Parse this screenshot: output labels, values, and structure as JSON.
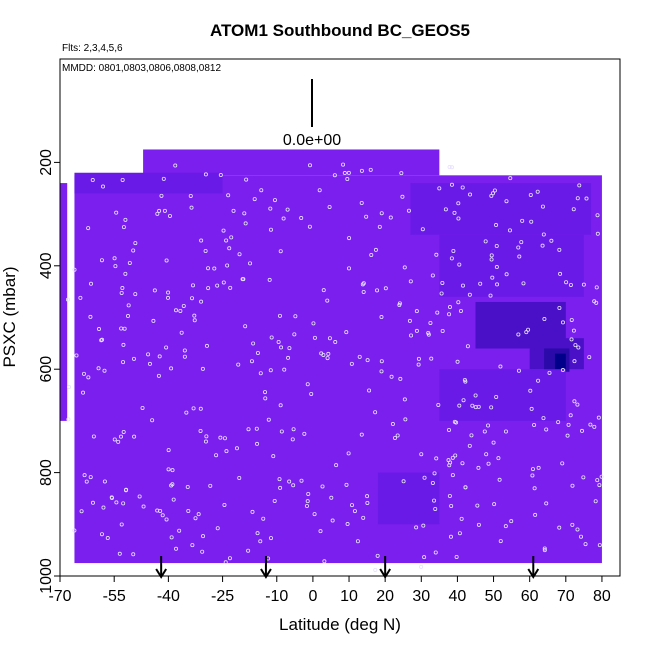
{
  "chart_data": {
    "type": "heatmap",
    "title": "ATOM1 Southbound BC_GEOS5",
    "flights_label": "Flts: 2,3,4,5,6",
    "dates_label": "MMDD: 0801,0803,0806,0808,0812",
    "xlabel": "Latitude (deg N)",
    "ylabel": "PSXC (mbar)",
    "xlim": [
      -70,
      85
    ],
    "ylim": [
      1000,
      0
    ],
    "x_ticks": [
      -70,
      -55,
      -40,
      -25,
      -10,
      0,
      10,
      20,
      30,
      40,
      50,
      60,
      70,
      80
    ],
    "y_ticks": [
      200,
      400,
      600,
      800,
      1000
    ],
    "scale_label": "0.0e+00",
    "colors": {
      "base": "#7b1fee",
      "mid": "#6a1ae6",
      "dark": "#4a10c8",
      "max": "#00008b",
      "marker": "#e8e0ff"
    },
    "arrow_latitudes": [
      -42,
      -13,
      20,
      61
    ],
    "regions": [
      {
        "lat": [
          -66,
          80
        ],
        "p": [
          225,
          975
        ],
        "level": 0
      },
      {
        "lat": [
          -47,
          35
        ],
        "p": [
          175,
          225
        ],
        "level": 0
      },
      {
        "lat": [
          -66,
          -25
        ],
        "p": [
          220,
          260
        ],
        "level": 1
      },
      {
        "lat": [
          27,
          77
        ],
        "p": [
          240,
          340
        ],
        "level": 1
      },
      {
        "lat": [
          35,
          75
        ],
        "p": [
          340,
          460
        ],
        "level": 1
      },
      {
        "lat": [
          45,
          70
        ],
        "p": [
          470,
          560
        ],
        "level": 2
      },
      {
        "lat": [
          60,
          75
        ],
        "p": [
          540,
          600
        ],
        "level": 2
      },
      {
        "lat": [
          64,
          71
        ],
        "p": [
          560,
          605
        ],
        "level": 3
      },
      {
        "lat": [
          67,
          70
        ],
        "p": [
          570,
          600
        ],
        "level": 4
      },
      {
        "lat": [
          35,
          70
        ],
        "p": [
          600,
          700
        ],
        "level": 1
      },
      {
        "lat": [
          18,
          35
        ],
        "p": [
          800,
          900
        ],
        "level": 1
      },
      {
        "lat": [
          -70,
          -68
        ],
        "p": [
          240,
          700
        ],
        "level": 0
      }
    ],
    "flight_tracks": [
      {
        "lat": [
          -68,
          -45
        ],
        "p": [
          230,
          960
        ]
      },
      {
        "lat": [
          -45,
          -25
        ],
        "p": [
          200,
          960
        ]
      },
      {
        "lat": [
          -25,
          -5
        ],
        "p": [
          230,
          980
        ]
      },
      {
        "lat": [
          -5,
          20
        ],
        "p": [
          200,
          990
        ]
      },
      {
        "lat": [
          20,
          40
        ],
        "p": [
          200,
          990
        ]
      },
      {
        "lat": [
          40,
          60
        ],
        "p": [
          230,
          980
        ]
      },
      {
        "lat": [
          60,
          80
        ],
        "p": [
          230,
          970
        ]
      }
    ]
  }
}
